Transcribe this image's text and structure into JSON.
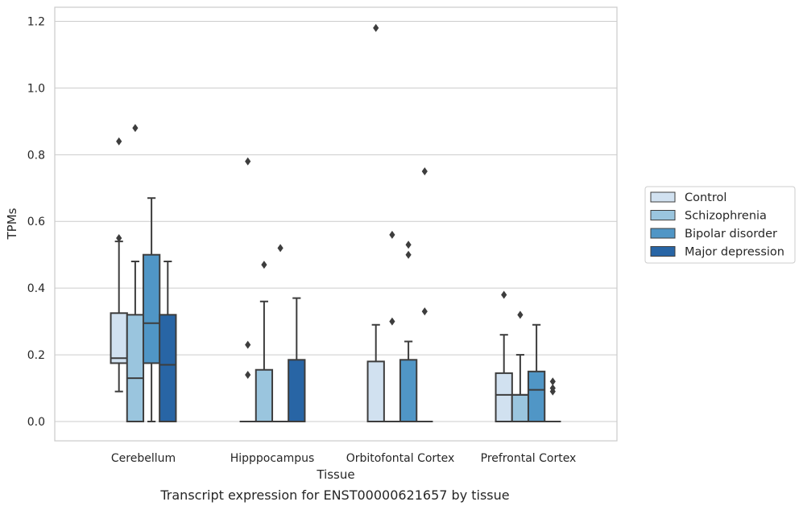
{
  "caption": "Transcript expression for ENST00000621657 by tissue",
  "chart_data": {
    "type": "box",
    "xlabel": "Tissue",
    "ylabel": "TPMs",
    "ylim": [
      -0.055,
      1.24
    ],
    "yticks": [
      0.0,
      0.2,
      0.4,
      0.6,
      0.8,
      1.0,
      1.2
    ],
    "ytick_labels": [
      "0.0",
      "0.2",
      "0.4",
      "0.6",
      "0.8",
      "1.0",
      "1.2"
    ],
    "grid": true,
    "legend_position": "outside-right",
    "categories": [
      "Cerebellum",
      "Hipppocampus",
      "Orbitofontal Cortex",
      "Prefrontal Cortex"
    ],
    "series": [
      {
        "name": "Control",
        "color": "#d1e1f0",
        "boxes": [
          {
            "q1": 0.175,
            "median": 0.19,
            "q3": 0.325,
            "whisker_low": 0.09,
            "whisker_high": 0.54,
            "outliers": [
              0.55,
              0.84
            ]
          },
          {
            "q1": 0.0,
            "median": 0.0,
            "q3": 0.0,
            "whisker_low": 0.0,
            "whisker_high": 0.0,
            "outliers": [
              0.14,
              0.23,
              0.78
            ]
          },
          {
            "q1": 0.0,
            "median": 0.0,
            "q3": 0.18,
            "whisker_low": 0.0,
            "whisker_high": 0.29,
            "outliers": [
              1.18
            ]
          },
          {
            "q1": 0.0,
            "median": 0.08,
            "q3": 0.145,
            "whisker_low": 0.0,
            "whisker_high": 0.26,
            "outliers": [
              0.38
            ]
          }
        ]
      },
      {
        "name": "Schizophrenia",
        "color": "#9ac5de",
        "boxes": [
          {
            "q1": 0.0,
            "median": 0.13,
            "q3": 0.32,
            "whisker_low": 0.0,
            "whisker_high": 0.48,
            "outliers": [
              0.88
            ]
          },
          {
            "q1": 0.0,
            "median": 0.0,
            "q3": 0.155,
            "whisker_low": 0.0,
            "whisker_high": 0.36,
            "outliers": [
              0.47
            ]
          },
          {
            "q1": 0.0,
            "median": 0.0,
            "q3": 0.0,
            "whisker_low": 0.0,
            "whisker_high": 0.0,
            "outliers": [
              0.3,
              0.56
            ]
          },
          {
            "q1": 0.0,
            "median": 0.08,
            "q3": 0.08,
            "whisker_low": 0.0,
            "whisker_high": 0.2,
            "outliers": [
              0.32
            ]
          }
        ]
      },
      {
        "name": "Bipolar disorder",
        "color": "#5096c6",
        "boxes": [
          {
            "q1": 0.175,
            "median": 0.295,
            "q3": 0.5,
            "whisker_low": 0.0,
            "whisker_high": 0.67,
            "outliers": []
          },
          {
            "q1": 0.0,
            "median": 0.0,
            "q3": 0.0,
            "whisker_low": 0.0,
            "whisker_high": 0.0,
            "outliers": [
              0.52
            ]
          },
          {
            "q1": 0.0,
            "median": 0.0,
            "q3": 0.185,
            "whisker_low": 0.0,
            "whisker_high": 0.24,
            "outliers": [
              0.5,
              0.53
            ]
          },
          {
            "q1": 0.0,
            "median": 0.095,
            "q3": 0.15,
            "whisker_low": 0.0,
            "whisker_high": 0.29,
            "outliers": []
          }
        ]
      },
      {
        "name": "Major depression",
        "color": "#2865a5",
        "boxes": [
          {
            "q1": 0.0,
            "median": 0.17,
            "q3": 0.32,
            "whisker_low": 0.0,
            "whisker_high": 0.48,
            "outliers": []
          },
          {
            "q1": 0.0,
            "median": 0.0,
            "q3": 0.185,
            "whisker_low": 0.0,
            "whisker_high": 0.37,
            "outliers": []
          },
          {
            "q1": 0.0,
            "median": 0.0,
            "q3": 0.0,
            "whisker_low": 0.0,
            "whisker_high": 0.0,
            "outliers": [
              0.33,
              0.75
            ]
          },
          {
            "q1": 0.0,
            "median": 0.0,
            "q3": 0.0,
            "whisker_low": 0.0,
            "whisker_high": 0.0,
            "outliers": [
              0.09,
              0.1,
              0.12
            ]
          }
        ]
      }
    ]
  }
}
